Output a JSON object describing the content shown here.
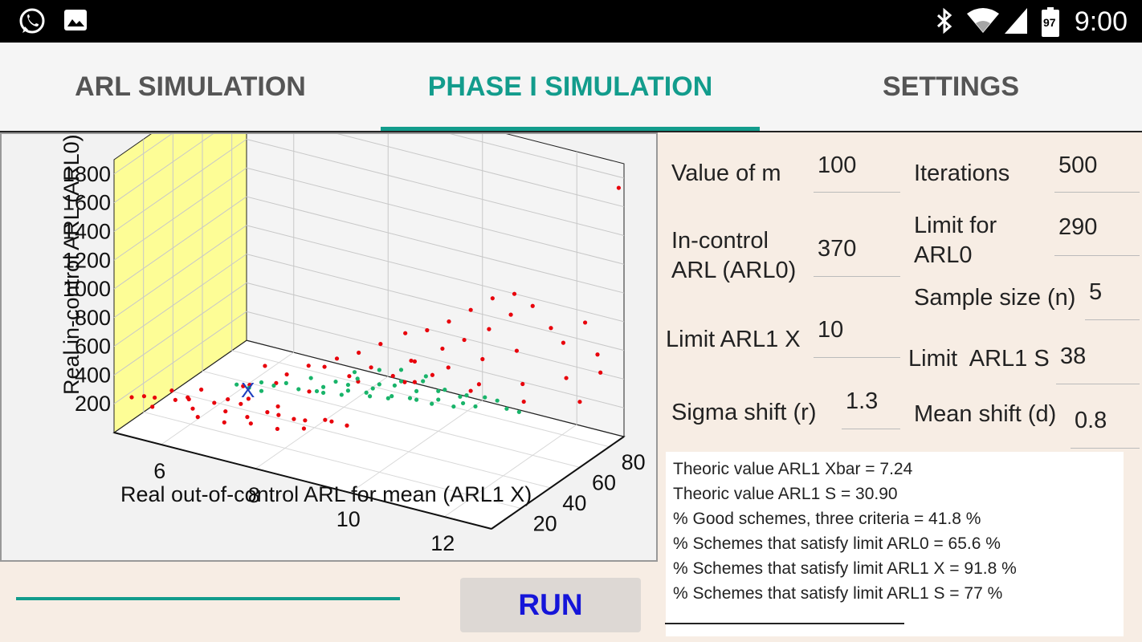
{
  "status_bar": {
    "time": "9:00",
    "battery_level": "97",
    "icons": [
      "whatsapp-icon",
      "image-icon",
      "bluetooth-icon",
      "wifi-icon",
      "signal-icon",
      "battery-icon"
    ]
  },
  "tabs": [
    {
      "label": "ARL SIMULATION",
      "active": false
    },
    {
      "label": "PHASE I SIMULATION",
      "active": true
    },
    {
      "label": "SETTINGS",
      "active": false
    }
  ],
  "colors": {
    "accent": "#129c8c",
    "run_text": "#1515d9",
    "point_red": "#e8000b",
    "point_green": "#19b46a",
    "wall_yellow": "#fdfd96",
    "background": "#f7ede4"
  },
  "params": {
    "m_label": "Value of m",
    "m_value": "100",
    "iter_label": "Iterations",
    "iter_value": "500",
    "arl0_label": "In-control ARL (ARL0)",
    "arl0_value": "370",
    "limit_arl0_label": "Limit for ARL0",
    "limit_arl0_value": "290",
    "n_label": "Sample size (n)",
    "n_value": "5",
    "limit_x_label": "Limit ARL1 X",
    "limit_x_value": "10",
    "limit_s_label": "Limit  ARL1 S",
    "limit_s_value": "38",
    "sigma_label": "Sigma shift (r)",
    "sigma_value": "1.3",
    "mean_label": "Mean shift (d)",
    "mean_value": "0.8"
  },
  "results": [
    "Theoric value ARL1 Xbar = 7.24",
    "Theoric value ARL1 S = 30.90",
    "% Good schemes, three criteria = 41.8 %",
    "% Schemes that satisfy limit ARL0 = 65.6 %",
    "% Schemes that satisfy limit ARL1 X = 91.8 %",
    "% Schemes that satisfy limit ARL1 S = 77 %"
  ],
  "run_label": "RUN",
  "progress": 1.0,
  "chart_data": {
    "type": "scatter",
    "title": "",
    "xlabel": "Real out-of-control ARL for mean (ARL1 X)",
    "ylabel": "Real in-control ARL (ARL0)",
    "zlabel": "",
    "x_ticks": [
      "6",
      "8",
      "10",
      "12"
    ],
    "y_ticks": [
      "200",
      "400",
      "600",
      "800",
      "1000",
      "1200",
      "1400",
      "1600",
      "1800"
    ],
    "z_ticks": [
      "20",
      "40",
      "60",
      "80"
    ],
    "marker_label": "X",
    "series": [
      {
        "color": "#e8000b",
        "points": [
          [
            5.0,
            160,
            12
          ],
          [
            5.2,
            170,
            14
          ],
          [
            5.5,
            150,
            10
          ],
          [
            5.8,
            180,
            16
          ],
          [
            6.0,
            200,
            18
          ],
          [
            6.2,
            160,
            15
          ],
          [
            6.5,
            190,
            20
          ],
          [
            6.8,
            170,
            18
          ],
          [
            7.0,
            210,
            22
          ],
          [
            7.2,
            150,
            20
          ],
          [
            7.5,
            180,
            24
          ],
          [
            7.8,
            200,
            22
          ],
          [
            8.0,
            160,
            26
          ],
          [
            8.3,
            190,
            24
          ],
          [
            6.4,
            140,
            12
          ],
          [
            6.9,
            130,
            14
          ],
          [
            7.4,
            150,
            16
          ],
          [
            7.9,
            140,
            18
          ],
          [
            8.4,
            170,
            20
          ],
          [
            5.6,
            200,
            20
          ],
          [
            6.1,
            220,
            24
          ],
          [
            6.6,
            180,
            26
          ],
          [
            7.1,
            240,
            24
          ],
          [
            7.6,
            200,
            28
          ],
          [
            5.3,
            140,
            18
          ],
          [
            5.9,
            150,
            22
          ],
          [
            8.6,
            190,
            28
          ],
          [
            9.0,
            170,
            30
          ],
          [
            8.8,
            210,
            26
          ],
          [
            7.2,
            420,
            32
          ],
          [
            7.6,
            380,
            34
          ],
          [
            8.0,
            460,
            36
          ],
          [
            8.4,
            500,
            34
          ],
          [
            8.8,
            440,
            38
          ],
          [
            9.2,
            520,
            40
          ],
          [
            9.6,
            480,
            42
          ],
          [
            10.0,
            600,
            44
          ],
          [
            8.2,
            340,
            30
          ],
          [
            8.6,
            560,
            36
          ],
          [
            9.0,
            620,
            38
          ],
          [
            9.4,
            700,
            40
          ],
          [
            9.8,
            780,
            44
          ],
          [
            10.2,
            820,
            46
          ],
          [
            10.6,
            900,
            48
          ],
          [
            11.0,
            1000,
            50
          ],
          [
            11.4,
            1100,
            52
          ],
          [
            11.8,
            1150,
            54
          ],
          [
            10.4,
            680,
            50
          ],
          [
            10.8,
            760,
            52
          ],
          [
            11.2,
            840,
            56
          ],
          [
            11.6,
            960,
            58
          ],
          [
            12.0,
            1040,
            60
          ],
          [
            9.8,
            560,
            48
          ],
          [
            10.4,
            520,
            54
          ],
          [
            11.0,
            600,
            58
          ],
          [
            11.6,
            680,
            62
          ],
          [
            12.2,
            860,
            66
          ],
          [
            12.4,
            760,
            68
          ],
          [
            12.8,
            920,
            70
          ],
          [
            13.0,
            700,
            72
          ],
          [
            10.0,
            420,
            56
          ],
          [
            10.8,
            380,
            62
          ],
          [
            11.6,
            420,
            66
          ],
          [
            12.4,
            500,
            70
          ],
          [
            13.0,
            560,
            74
          ],
          [
            9.5,
            300,
            60
          ],
          [
            10.5,
            280,
            66
          ],
          [
            11.5,
            260,
            70
          ],
          [
            12.5,
            300,
            76
          ],
          [
            13.2,
            1820,
            80
          ],
          [
            7.0,
            300,
            28
          ],
          [
            7.5,
            340,
            30
          ],
          [
            6.8,
            260,
            30
          ],
          [
            8.8,
            360,
            44
          ],
          [
            9.6,
            380,
            50
          ]
        ]
      },
      {
        "color": "#19b46a",
        "points": [
          [
            7.4,
            260,
            40
          ],
          [
            7.8,
            300,
            44
          ],
          [
            8.2,
            280,
            48
          ],
          [
            8.6,
            320,
            50
          ],
          [
            9.0,
            300,
            52
          ],
          [
            9.4,
            340,
            54
          ],
          [
            9.8,
            360,
            56
          ],
          [
            10.2,
            320,
            58
          ],
          [
            10.6,
            300,
            60
          ],
          [
            8.0,
            240,
            46
          ],
          [
            8.4,
            260,
            50
          ],
          [
            8.8,
            240,
            54
          ],
          [
            9.2,
            280,
            56
          ],
          [
            9.6,
            260,
            58
          ],
          [
            10.0,
            280,
            60
          ],
          [
            10.4,
            260,
            62
          ],
          [
            7.6,
            220,
            42
          ],
          [
            8.0,
            200,
            46
          ],
          [
            8.4,
            220,
            50
          ],
          [
            8.8,
            200,
            52
          ],
          [
            9.2,
            220,
            54
          ],
          [
            9.6,
            200,
            58
          ],
          [
            10.0,
            220,
            60
          ],
          [
            10.4,
            200,
            64
          ],
          [
            7.2,
            240,
            38
          ],
          [
            7.0,
            200,
            36
          ],
          [
            8.6,
            380,
            48
          ],
          [
            9.0,
            400,
            52
          ],
          [
            9.4,
            420,
            54
          ],
          [
            9.8,
            380,
            58
          ],
          [
            10.8,
            260,
            66
          ],
          [
            11.0,
            240,
            68
          ],
          [
            11.2,
            200,
            68
          ],
          [
            11.4,
            180,
            70
          ],
          [
            10.6,
            180,
            66
          ],
          [
            10.2,
            160,
            64
          ],
          [
            9.8,
            160,
            62
          ],
          [
            9.4,
            180,
            60
          ],
          [
            9.0,
            160,
            58
          ],
          [
            8.6,
            180,
            56
          ],
          [
            8.2,
            160,
            52
          ],
          [
            7.8,
            180,
            48
          ],
          [
            6.8,
            220,
            34
          ],
          [
            6.6,
            240,
            32
          ],
          [
            7.0,
            260,
            36
          ]
        ]
      }
    ]
  }
}
